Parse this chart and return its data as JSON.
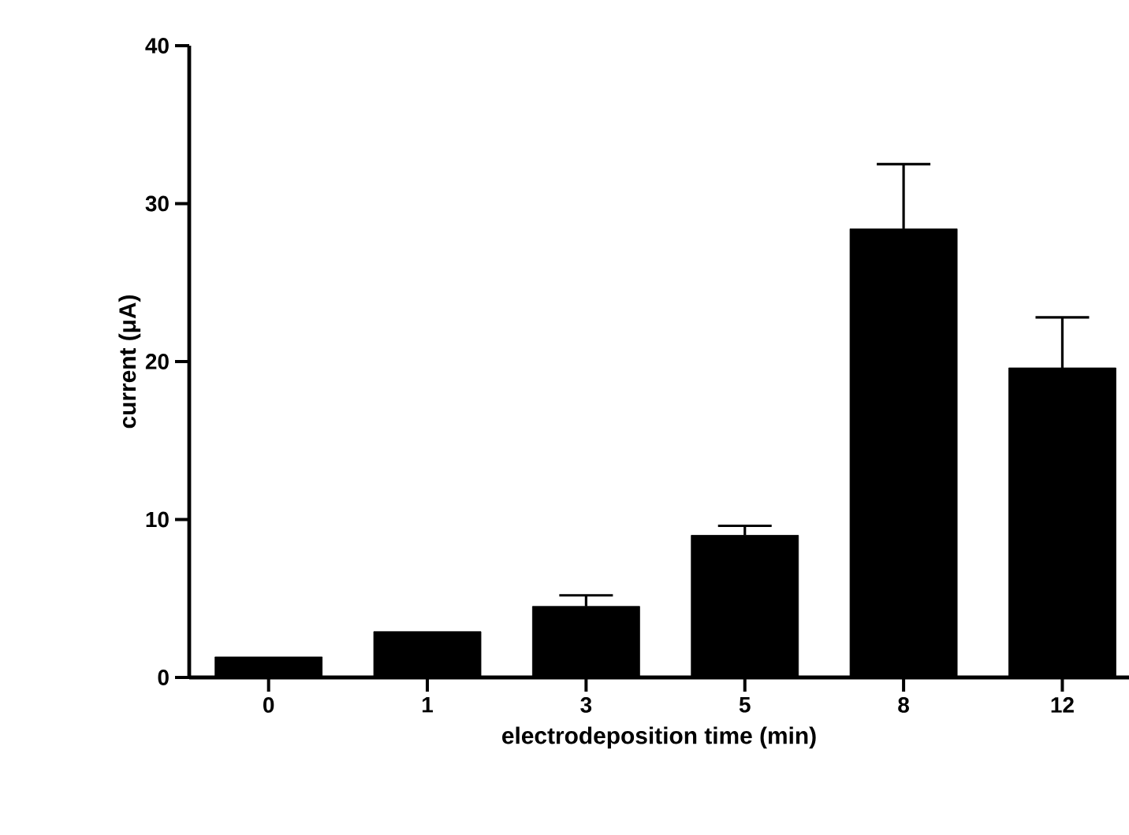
{
  "chart_data": {
    "type": "bar",
    "xlabel": "electrodeposition time (min)",
    "ylabel": "current (μA)",
    "categories": [
      "0",
      "1",
      "3",
      "5",
      "8",
      "12"
    ],
    "values": [
      1.3,
      2.9,
      4.5,
      9.0,
      28.4,
      19.6
    ],
    "errors": [
      null,
      null,
      [
        4.5,
        5.2
      ],
      [
        9.0,
        9.6
      ],
      [
        28.4,
        32.5
      ],
      [
        19.6,
        22.8
      ]
    ],
    "color": "#000000",
    "ylim": [
      0,
      40
    ],
    "yticks": [
      0,
      10,
      20,
      30,
      40
    ],
    "grid": false
  }
}
